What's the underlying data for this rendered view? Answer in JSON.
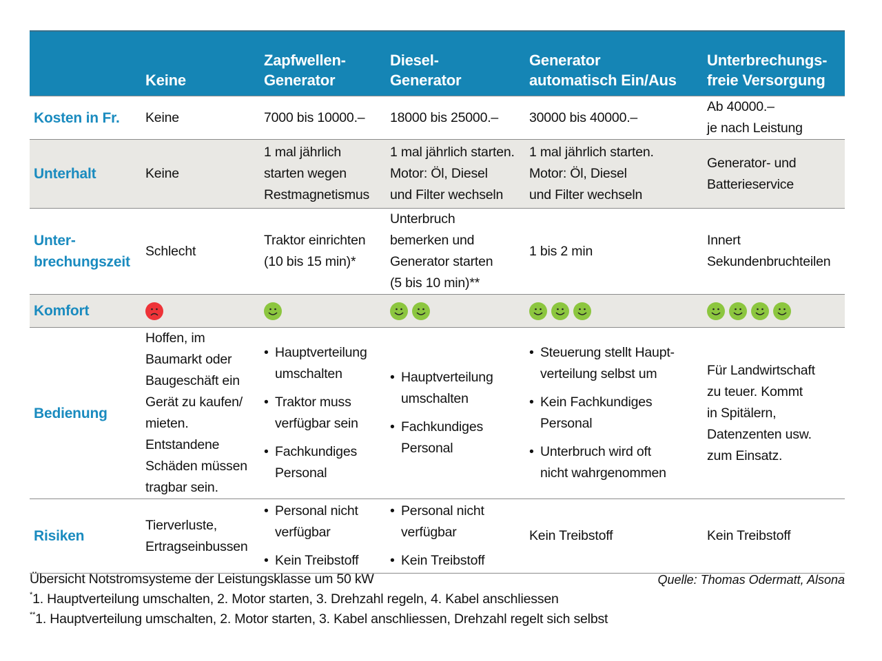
{
  "colors": {
    "header_bg": "#1585b5",
    "row_label": "#1a8bbf",
    "gray_row": "#e9e8e4",
    "happy": "#8cc63f",
    "sad": "#ee3338"
  },
  "header": [
    "",
    "Keine",
    [
      "Zapfwellen-",
      "Generator"
    ],
    [
      "Diesel-",
      "Generator"
    ],
    [
      "Generator",
      "automatisch Ein/Aus"
    ],
    [
      "Unterbrechungs-",
      "freie Versorgung"
    ]
  ],
  "rows": [
    {
      "label": [
        "Kosten in Fr."
      ],
      "gray": false,
      "h": 62,
      "cells": [
        {
          "lines": [
            "Keine"
          ]
        },
        {
          "lines": [
            "7000 bis 10000.–"
          ]
        },
        {
          "lines": [
            "18000 bis 25000.–"
          ]
        },
        {
          "lines": [
            "30000 bis 40000.–"
          ]
        },
        {
          "lines": [
            "Ab 40000.–",
            "je nach Leistung"
          ]
        }
      ]
    },
    {
      "label": [
        "Unterhalt"
      ],
      "gray": true,
      "h": 100,
      "cells": [
        {
          "lines": [
            "Keine"
          ]
        },
        {
          "lines": [
            "1 mal jährlich",
            "starten wegen",
            "Restmagnetismus"
          ]
        },
        {
          "lines": [
            "1 mal jährlich starten.",
            "Motor: Öl, Diesel",
            "und Filter wechseln"
          ]
        },
        {
          "lines": [
            "1 mal jährlich starten.",
            "Motor: Öl, Diesel",
            "und Filter wechseln"
          ]
        },
        {
          "lines": [
            "Generator- und",
            "Batterieservice"
          ]
        }
      ]
    },
    {
      "label": [
        "Unter-",
        "brechungszeit"
      ],
      "gray": false,
      "h": 123,
      "cells": [
        {
          "lines": [
            "Schlecht"
          ]
        },
        {
          "lines": [
            "Traktor einrichten",
            "(10 bis 15 min)*"
          ]
        },
        {
          "lines": [
            "Unterbruch",
            "bemerken und",
            "Generator starten",
            "(5 bis 10 min)**"
          ]
        },
        {
          "lines": [
            "1 bis 2 min"
          ]
        },
        {
          "lines": [
            "Innert",
            "Sekundenbruchteilen"
          ]
        }
      ]
    },
    {
      "label": [
        "Komfort"
      ],
      "gray": true,
      "h": 48,
      "cells": [
        {
          "smileys": 1,
          "mood": "sad"
        },
        {
          "smileys": 1,
          "mood": "happy"
        },
        {
          "smileys": 2,
          "mood": "happy"
        },
        {
          "smileys": 3,
          "mood": "happy"
        },
        {
          "smileys": 4,
          "mood": "happy"
        }
      ]
    },
    {
      "label": [
        "Bedienung"
      ],
      "gray": false,
      "h": 246,
      "cells": [
        {
          "lines": [
            "Hoffen, im",
            "Baumarkt oder",
            "Baugeschäft ein",
            "Gerät zu kaufen/",
            "mieten.",
            "Entstandene",
            "Schäden müssen",
            "tragbar sein."
          ]
        },
        {
          "bullets": [
            [
              "Hauptverteilung",
              "umschalten"
            ],
            [
              "Traktor muss",
              "verfügbar sein"
            ],
            [
              "Fachkundiges",
              "Personal"
            ]
          ]
        },
        {
          "bullets": [
            [
              "Hauptverteilung",
              "umschalten"
            ],
            [
              "Fachkundiges",
              "Personal"
            ]
          ]
        },
        {
          "bullets": [
            [
              "Steuerung stellt Haupt-",
              "verteilung selbst um"
            ],
            [
              "Kein Fachkundiges",
              "Personal"
            ],
            [
              "Unterbruch wird oft",
              "nicht wahrgenommen"
            ]
          ]
        },
        {
          "lines": [
            "Für Landwirtschaft",
            "zu teuer. Kommt",
            "in Spitälern,",
            "Datenzenten usw.",
            "zum Einsatz."
          ]
        }
      ]
    },
    {
      "label": [
        "Risiken"
      ],
      "gray": false,
      "h": 103,
      "last": true,
      "cells": [
        {
          "lines": [
            "Tierverluste,",
            "Ertragseinbussen"
          ]
        },
        {
          "bullets": [
            [
              "Personal nicht",
              "verfügbar"
            ],
            [
              "Kein Treibstoff"
            ]
          ]
        },
        {
          "bullets": [
            [
              "Personal nicht",
              "verfügbar"
            ],
            [
              "Kein Treibstoff"
            ]
          ]
        },
        {
          "lines": [
            "Kein Treibstoff"
          ]
        },
        {
          "lines": [
            "Kein Treibstoff"
          ]
        }
      ]
    }
  ],
  "footer": {
    "caption": "Übersicht Notstromsysteme der Leistungsklasse um 50 kW",
    "source": "Quelle: Thomas Odermatt, Alsona",
    "note1_mark": "*",
    "note1": "1. Hauptverteilung umschalten, 2. Motor starten, 3. Drehzahl regeln, 4. Kabel anschliessen",
    "note2_mark": "**",
    "note2": "1. Hauptverteilung umschalten, 2. Motor starten, 3. Kabel anschliessen, Drehzahl regelt sich selbst"
  }
}
